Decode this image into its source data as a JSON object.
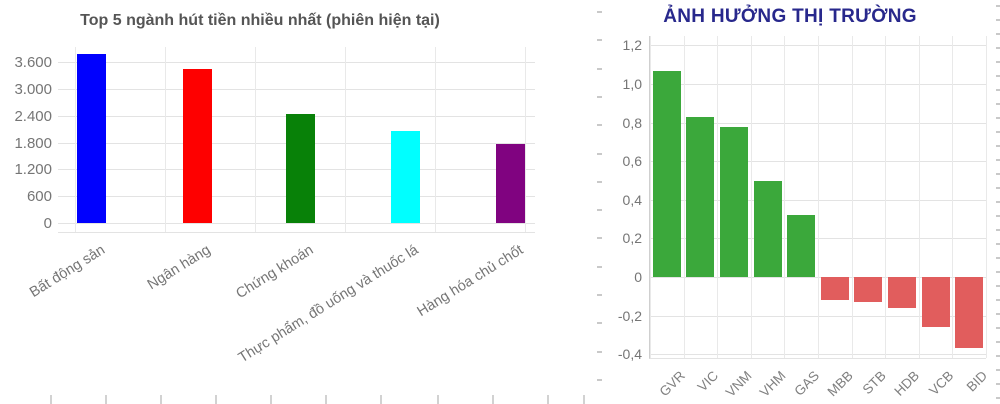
{
  "page": {
    "background": "#ffffff"
  },
  "chart_data": [
    {
      "type": "bar",
      "title": "Top 5 ngành hút tiền nhiều nhất (phiên hiện tại)",
      "title_color": "#555555",
      "categories": [
        "Bất động sản",
        "Ngân hàng",
        "Chứng khoán",
        "Thực phẩm, đồ uống và thuốc lá",
        "Hàng hóa chủ chốt"
      ],
      "values": [
        3780,
        3450,
        2440,
        2060,
        1780
      ],
      "bar_colors": [
        "#0000fe",
        "#fe0000",
        "#088108",
        "#00ffff",
        "#800380"
      ],
      "y_tick_values": [
        0,
        600,
        1200,
        1800,
        2400,
        3000,
        3600
      ],
      "y_tick_labels": [
        "0",
        "600",
        "1.200",
        "1.800",
        "2.400",
        "3.000",
        "3.600"
      ],
      "ylim": [
        0,
        3940
      ],
      "xlabel": "",
      "ylabel": "",
      "grid": true,
      "legend": false
    },
    {
      "type": "bar",
      "title": "ẢNH HƯỞNG THỊ TRƯỜNG",
      "title_color": "#28288c",
      "categories": [
        "GVR",
        "VIC",
        "VNM",
        "VHM",
        "GAS",
        "MBB",
        "STB",
        "HDB",
        "VCB",
        "BID"
      ],
      "values": [
        1.07,
        0.83,
        0.78,
        0.5,
        0.32,
        -0.12,
        -0.13,
        -0.16,
        -0.26,
        -0.37
      ],
      "positive_color": "#3ba83b",
      "negative_color": "#e15d5d",
      "y_tick_values": [
        1.2,
        1.0,
        0.8,
        0.6,
        0.4,
        0.2,
        0,
        -0.2,
        -0.4
      ],
      "y_tick_labels": [
        "1,2",
        "1,0",
        "0,8",
        "0,6",
        "0,4",
        "0,2",
        "0",
        "-0,2",
        "-0,4"
      ],
      "ylim": [
        -0.42,
        1.22
      ],
      "xlabel": "",
      "ylabel": "",
      "grid": true,
      "legend": false
    }
  ]
}
